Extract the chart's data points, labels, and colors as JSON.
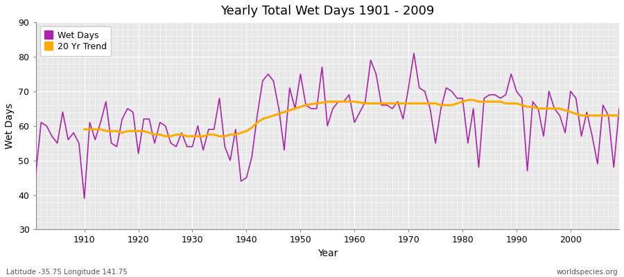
{
  "title": "Yearly Total Wet Days 1901 - 2009",
  "xlabel": "Year",
  "ylabel": "Wet Days",
  "footnote_left": "Latitude -35.75 Longitude 141.75",
  "footnote_right": "worldspecies.org",
  "ylim": [
    30,
    90
  ],
  "yticks": [
    30,
    40,
    50,
    60,
    70,
    80,
    90
  ],
  "wet_days_color": "#aa22aa",
  "trend_color": "#ffaa00",
  "plot_bg_color": "#e8e8e8",
  "fig_bg_color": "#ffffff",
  "legend_labels": [
    "Wet Days",
    "20 Yr Trend"
  ],
  "years": [
    1901,
    1902,
    1903,
    1904,
    1905,
    1906,
    1907,
    1908,
    1909,
    1910,
    1911,
    1912,
    1913,
    1914,
    1915,
    1916,
    1917,
    1918,
    1919,
    1920,
    1921,
    1922,
    1923,
    1924,
    1925,
    1926,
    1927,
    1928,
    1929,
    1930,
    1931,
    1932,
    1933,
    1934,
    1935,
    1936,
    1937,
    1938,
    1939,
    1940,
    1941,
    1942,
    1943,
    1944,
    1945,
    1946,
    1947,
    1948,
    1949,
    1950,
    1951,
    1952,
    1953,
    1954,
    1955,
    1956,
    1957,
    1958,
    1959,
    1960,
    1961,
    1962,
    1963,
    1964,
    1965,
    1966,
    1967,
    1968,
    1969,
    1970,
    1971,
    1972,
    1973,
    1974,
    1975,
    1976,
    1977,
    1978,
    1979,
    1980,
    1981,
    1982,
    1983,
    1984,
    1985,
    1986,
    1987,
    1988,
    1989,
    1990,
    1991,
    1992,
    1993,
    1994,
    1995,
    1996,
    1997,
    1998,
    1999,
    2000,
    2001,
    2002,
    2003,
    2004,
    2005,
    2006,
    2007,
    2008,
    2009
  ],
  "wet_days": [
    46,
    61,
    60,
    57,
    55,
    64,
    56,
    58,
    55,
    39,
    61,
    56,
    61,
    67,
    55,
    54,
    62,
    65,
    64,
    52,
    62,
    62,
    55,
    61,
    60,
    55,
    54,
    58,
    54,
    54,
    60,
    53,
    59,
    59,
    68,
    54,
    50,
    59,
    44,
    45,
    51,
    63,
    73,
    75,
    73,
    65,
    53,
    71,
    65,
    75,
    66,
    65,
    65,
    77,
    60,
    65,
    67,
    67,
    69,
    61,
    64,
    67,
    79,
    75,
    66,
    66,
    65,
    67,
    62,
    71,
    81,
    71,
    70,
    65,
    55,
    65,
    71,
    70,
    68,
    68,
    55,
    65,
    48,
    68,
    69,
    69,
    68,
    69,
    75,
    70,
    68,
    47,
    67,
    65,
    57,
    70,
    65,
    63,
    58,
    70,
    68,
    57,
    64,
    57,
    49,
    66,
    63,
    48,
    65
  ],
  "trend_years": [
    1910,
    1911,
    1912,
    1913,
    1914,
    1915,
    1916,
    1917,
    1918,
    1919,
    1920,
    1921,
    1922,
    1923,
    1924,
    1925,
    1926,
    1927,
    1928,
    1929,
    1930,
    1931,
    1932,
    1933,
    1934,
    1935,
    1936,
    1937,
    1938,
    1939,
    1940,
    1941,
    1942,
    1943,
    1944,
    1945,
    1946,
    1947,
    1948,
    1949,
    1950,
    1951,
    1952,
    1953,
    1954,
    1955,
    1956,
    1957,
    1958,
    1959,
    1960,
    1961,
    1962,
    1963,
    1964,
    1965,
    1966,
    1967,
    1968,
    1969,
    1970,
    1971,
    1972,
    1973,
    1974,
    1975,
    1976,
    1977,
    1978,
    1979,
    1980,
    1981,
    1982,
    1983,
    1984,
    1985,
    1986,
    1987,
    1988,
    1989,
    1990,
    1991,
    1992,
    1993,
    1994,
    1995,
    1996,
    1997,
    1998,
    1999,
    2000,
    2001,
    2002,
    2003,
    2004,
    2005,
    2006,
    2007,
    2008,
    2009
  ],
  "trend_values": [
    59.0,
    59.0,
    59.0,
    59.0,
    58.5,
    58.5,
    58.5,
    58.0,
    58.5,
    58.5,
    58.5,
    58.5,
    58.0,
    57.5,
    57.5,
    57.0,
    57.0,
    57.5,
    57.5,
    57.0,
    57.0,
    57.0,
    57.0,
    57.5,
    57.5,
    57.0,
    57.0,
    57.5,
    57.5,
    58.0,
    58.5,
    59.5,
    61.0,
    62.0,
    62.5,
    63.0,
    63.5,
    64.0,
    64.5,
    65.0,
    65.5,
    66.0,
    66.3,
    66.5,
    66.7,
    67.0,
    67.0,
    67.0,
    67.0,
    67.0,
    67.0,
    66.8,
    66.5,
    66.5,
    66.5,
    66.5,
    66.5,
    66.5,
    66.5,
    66.5,
    66.5,
    66.5,
    66.5,
    66.5,
    66.5,
    66.5,
    66.0,
    66.0,
    66.0,
    66.5,
    67.0,
    67.5,
    67.5,
    67.0,
    67.0,
    67.0,
    67.0,
    67.0,
    66.5,
    66.5,
    66.5,
    66.0,
    65.5,
    65.5,
    65.0,
    65.0,
    65.0,
    65.0,
    65.0,
    64.5,
    64.0,
    63.5,
    63.0,
    63.0,
    63.0,
    63.0,
    63.0,
    63.0,
    63.0,
    63.0
  ],
  "xticks": [
    1910,
    1920,
    1930,
    1940,
    1950,
    1960,
    1970,
    1980,
    1990,
    2000
  ],
  "xlim": [
    1901,
    2009
  ]
}
